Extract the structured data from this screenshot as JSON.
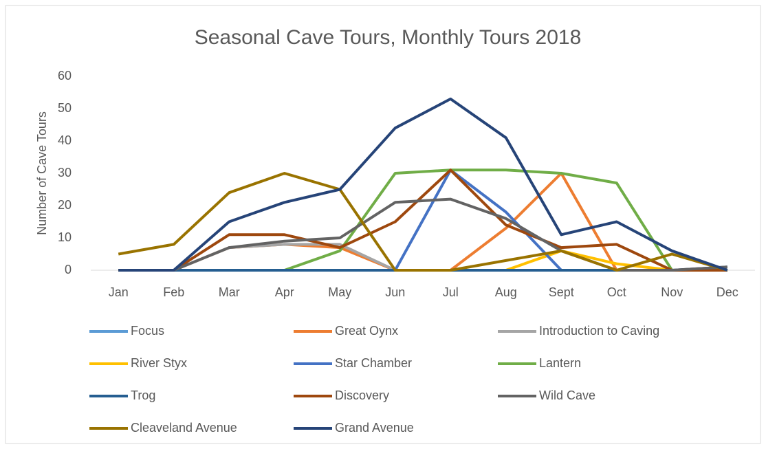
{
  "chart_data": {
    "type": "line",
    "title": "Seasonal Cave Tours, Monthly Tours 2018",
    "y_label": "Number  of Cave Tours",
    "categories": [
      "Jan",
      "Feb",
      "Mar",
      "Apr",
      "May",
      "Jun",
      "Jul",
      "Aug",
      "Sept",
      "Oct",
      "Nov",
      "Dec"
    ],
    "ylim": [
      0,
      60
    ],
    "yticks": [
      0,
      10,
      20,
      30,
      40,
      50,
      60
    ],
    "grid": false,
    "legend": "bottom",
    "series": [
      {
        "name": "Focus",
        "color": "#5b9bd5",
        "values": [
          0,
          0,
          0,
          0,
          0,
          0,
          0,
          0,
          0,
          0,
          0,
          0
        ]
      },
      {
        "name": "Great Oynx",
        "color": "#ed7d31",
        "values": [
          0,
          0,
          7,
          8,
          7,
          0,
          0,
          13,
          30,
          0,
          0,
          0
        ]
      },
      {
        "name": "Introduction to Caving",
        "color": "#a5a5a5",
        "values": [
          0,
          0,
          7,
          8,
          8,
          0,
          0,
          0,
          0,
          0,
          0,
          0
        ]
      },
      {
        "name": "River Styx",
        "color": "#ffc000",
        "values": [
          0,
          0,
          0,
          0,
          0,
          0,
          0,
          0,
          6,
          2,
          0,
          0
        ]
      },
      {
        "name": "Star Chamber",
        "color": "#4472c4",
        "values": [
          0,
          0,
          0,
          0,
          0,
          0,
          31,
          18,
          0,
          0,
          0,
          0
        ]
      },
      {
        "name": "Lantern",
        "color": "#70ad47",
        "values": [
          0,
          0,
          0,
          0,
          6,
          30,
          31,
          31,
          30,
          27,
          0,
          0
        ]
      },
      {
        "name": "Trog",
        "color": "#255e91",
        "values": [
          0,
          0,
          0,
          0,
          0,
          0,
          0,
          0,
          0,
          0,
          0,
          1
        ]
      },
      {
        "name": "Discovery",
        "color": "#9e480e",
        "values": [
          0,
          0,
          11,
          11,
          7,
          15,
          31,
          14,
          7,
          8,
          0,
          0
        ]
      },
      {
        "name": "Wild Cave",
        "color": "#636363",
        "values": [
          0,
          0,
          7,
          9,
          10,
          21,
          22,
          16,
          6,
          0,
          0,
          1
        ]
      },
      {
        "name": "Cleaveland Avenue",
        "color": "#997300",
        "values": [
          5,
          8,
          24,
          30,
          25,
          0,
          0,
          3,
          6,
          0,
          5,
          0
        ]
      },
      {
        "name": "Grand Avenue",
        "color": "#264478",
        "values": [
          0,
          0,
          15,
          21,
          25,
          44,
          53,
          41,
          11,
          15,
          6,
          0
        ]
      }
    ]
  }
}
